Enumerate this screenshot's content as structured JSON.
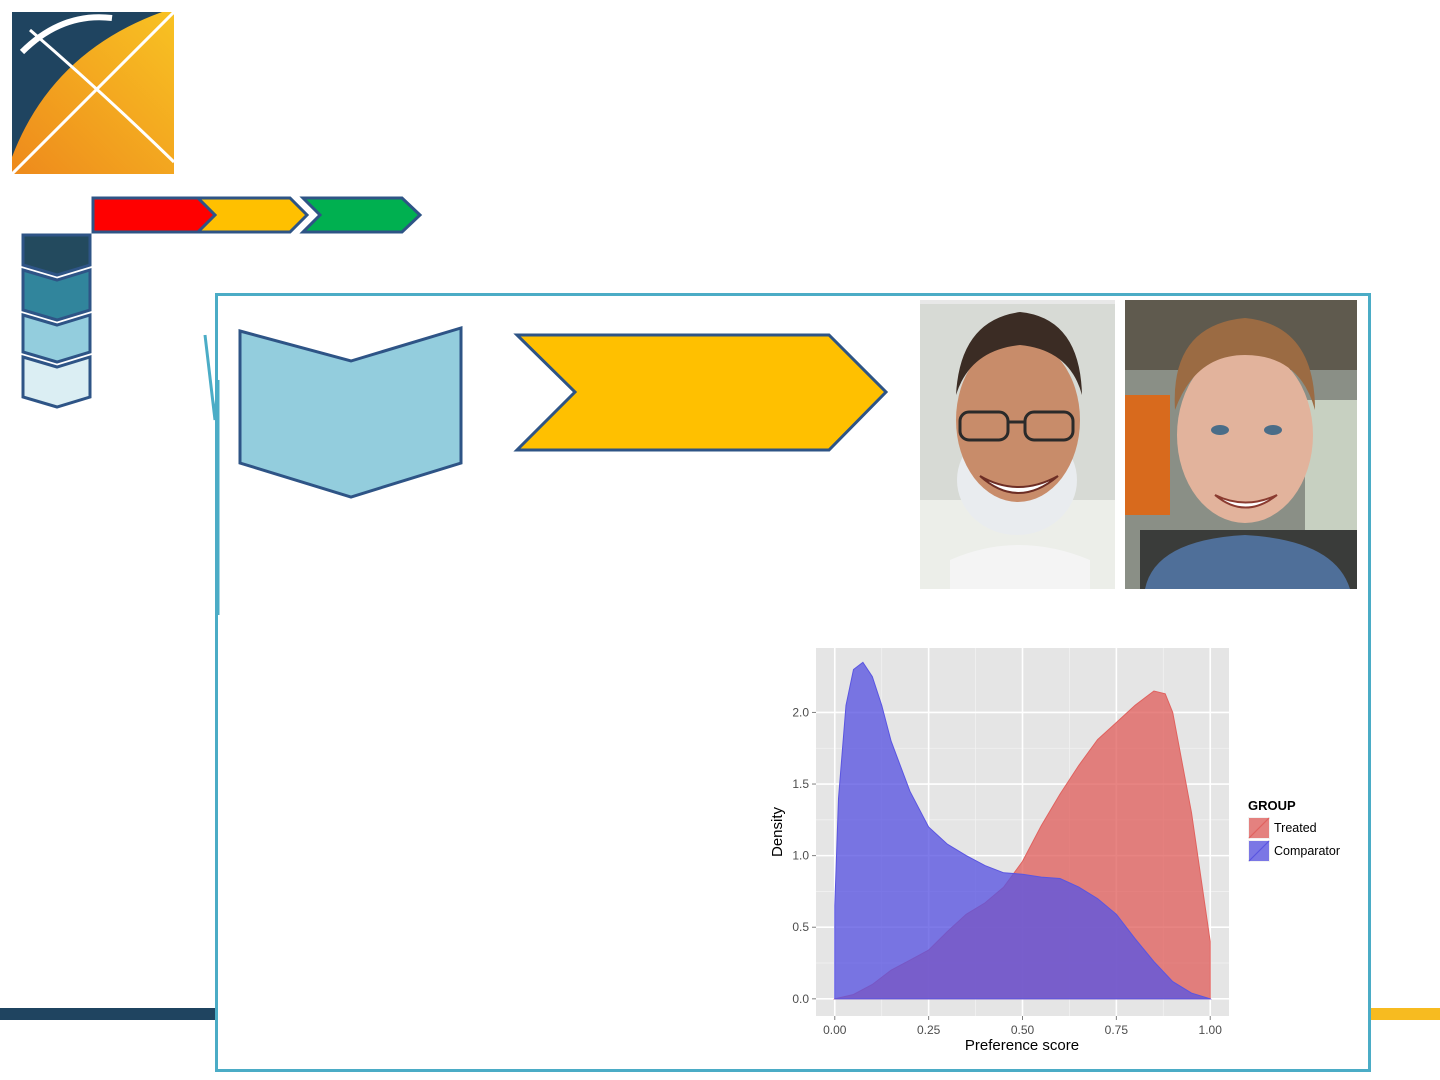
{
  "colors": {
    "logo_dark": "#1f4460",
    "logo_orange": "#f0901e",
    "logo_yellow": "#f7bb20",
    "step_red": "#ff0000",
    "step_yellow": "#ffc000",
    "step_green": "#00b050",
    "shape_outline": "#2e5486",
    "chevron_1": "#234a5e",
    "chevron_2": "#31859c",
    "chevron_3": "#93cddd",
    "chevron_4": "#dbeef3",
    "panel_border": "#4bacc6",
    "footer_dark": "#1f4460",
    "footer_yellow": "#f7bb20",
    "light_blue_box": "#93cddd",
    "yellow_arrow": "#ffc000",
    "chart_bg": "#e5e5e5",
    "treated": "#e0625f",
    "comparator": "#5a55e1"
  },
  "icons": [
    "logo-icon",
    "step-arrow-icon",
    "chevron-icon",
    "photo-icon"
  ],
  "chart_data": {
    "type": "area",
    "title": "",
    "xlabel": "Preference score",
    "ylabel": "Density",
    "xlim": [
      0,
      1
    ],
    "ylim": [
      0,
      2.45
    ],
    "x_ticks": [
      "0.00",
      "0.25",
      "0.50",
      "0.75",
      "1.00"
    ],
    "y_ticks": [
      "0.0",
      "0.5",
      "1.0",
      "1.5",
      "2.0"
    ],
    "grid": true,
    "legend": {
      "title": "GROUP",
      "placement": "right",
      "entries": [
        "Treated",
        "Comparator"
      ]
    },
    "series": [
      {
        "name": "Treated",
        "x": [
          0,
          0.05,
          0.1,
          0.15,
          0.2,
          0.25,
          0.3,
          0.35,
          0.4,
          0.45,
          0.5,
          0.55,
          0.6,
          0.65,
          0.7,
          0.75,
          0.8,
          0.85,
          0.88,
          0.9,
          0.95,
          1.0
        ],
        "y": [
          0,
          0.03,
          0.1,
          0.2,
          0.27,
          0.34,
          0.47,
          0.59,
          0.67,
          0.78,
          0.96,
          1.21,
          1.43,
          1.63,
          1.81,
          1.93,
          2.05,
          2.15,
          2.13,
          2.0,
          1.3,
          0.4
        ]
      },
      {
        "name": "Comparator",
        "x": [
          0,
          0.01,
          0.03,
          0.05,
          0.075,
          0.1,
          0.125,
          0.15,
          0.2,
          0.25,
          0.3,
          0.35,
          0.4,
          0.45,
          0.5,
          0.55,
          0.6,
          0.65,
          0.7,
          0.75,
          0.8,
          0.85,
          0.9,
          0.95,
          1.0
        ],
        "y": [
          0.65,
          1.4,
          2.05,
          2.3,
          2.35,
          2.25,
          2.05,
          1.8,
          1.45,
          1.2,
          1.08,
          1.0,
          0.93,
          0.88,
          0.87,
          0.85,
          0.84,
          0.78,
          0.7,
          0.59,
          0.42,
          0.26,
          0.12,
          0.04,
          0.0
        ]
      }
    ]
  }
}
